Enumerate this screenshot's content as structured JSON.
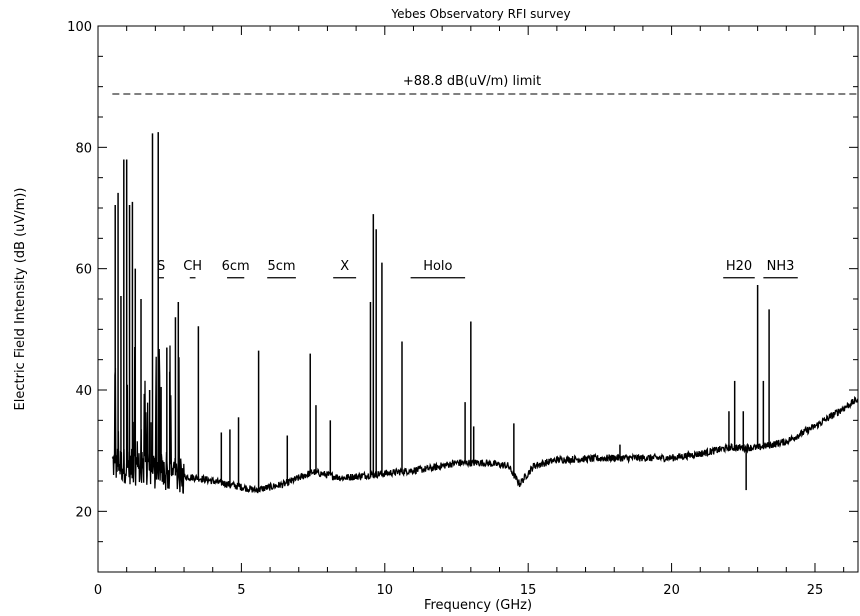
{
  "chart_data": {
    "type": "line",
    "title": "Yebes Observatory RFI survey",
    "xlabel": "Frequency (GHz)",
    "ylabel": "Electric Field Intensity (dB (uV/m))",
    "xlim": [
      0,
      26.5
    ],
    "ylim": [
      10,
      100
    ],
    "x_ticks": [
      0,
      5,
      10,
      15,
      20,
      25
    ],
    "y_ticks": [
      20,
      40,
      60,
      80,
      100
    ],
    "grid": false,
    "limit": {
      "value": 88.8,
      "label": "+88.8 dB(uV/m) limit"
    },
    "bands": [
      {
        "label": "S",
        "from": 2.1,
        "to": 2.3
      },
      {
        "label": "CH",
        "from": 3.2,
        "to": 3.4
      },
      {
        "label": "6cm",
        "from": 4.5,
        "to": 5.1
      },
      {
        "label": "5cm",
        "from": 5.9,
        "to": 6.9
      },
      {
        "label": "X",
        "from": 8.2,
        "to": 9.0
      },
      {
        "label": "Holo",
        "from": 10.9,
        "to": 12.8
      },
      {
        "label": "H20",
        "from": 21.8,
        "to": 22.9
      },
      {
        "label": "NH3",
        "from": 23.2,
        "to": 24.4
      }
    ],
    "series": [
      {
        "baseline": [
          [
            0.5,
            28
          ],
          [
            1.5,
            27
          ],
          [
            2.5,
            26
          ],
          [
            3.5,
            25.5
          ],
          [
            4.5,
            24.5
          ],
          [
            5.5,
            23.5
          ],
          [
            6.5,
            24.5
          ],
          [
            7.5,
            26.5
          ],
          [
            8.5,
            25.5
          ],
          [
            9.5,
            26
          ],
          [
            10.5,
            26.5
          ],
          [
            11.5,
            27
          ],
          [
            12.5,
            28
          ],
          [
            13.5,
            28
          ],
          [
            14.3,
            27.5
          ],
          [
            14.7,
            24.5
          ],
          [
            15.2,
            27.5
          ],
          [
            16,
            28.5
          ],
          [
            18,
            28.8
          ],
          [
            20,
            28.8
          ],
          [
            21,
            29.5
          ],
          [
            22,
            30.5
          ],
          [
            23,
            30.5
          ],
          [
            24,
            31.5
          ],
          [
            25,
            34
          ],
          [
            26,
            37
          ],
          [
            26.5,
            38.5
          ]
        ],
        "peaks": [
          [
            0.6,
            70.5
          ],
          [
            0.7,
            72.5
          ],
          [
            0.8,
            55.5
          ],
          [
            0.9,
            78
          ],
          [
            1.0,
            78
          ],
          [
            1.1,
            70.5
          ],
          [
            1.2,
            71
          ],
          [
            1.3,
            60
          ],
          [
            1.5,
            55
          ],
          [
            1.8,
            40
          ],
          [
            1.9,
            82.3
          ],
          [
            2.1,
            82.5
          ],
          [
            2.2,
            40.5
          ],
          [
            2.4,
            47
          ],
          [
            2.5,
            43
          ],
          [
            2.7,
            52
          ],
          [
            2.8,
            54.5
          ],
          [
            3.5,
            50.5
          ],
          [
            4.3,
            33
          ],
          [
            4.6,
            33.5
          ],
          [
            4.9,
            35.5
          ],
          [
            5.6,
            46.5
          ],
          [
            6.6,
            32.5
          ],
          [
            7.4,
            46
          ],
          [
            7.6,
            37.5
          ],
          [
            8.1,
            35
          ],
          [
            9.5,
            54.5
          ],
          [
            9.6,
            69
          ],
          [
            9.7,
            66.5
          ],
          [
            9.9,
            61
          ],
          [
            10.6,
            48
          ],
          [
            12.8,
            38
          ],
          [
            13.0,
            51.3
          ],
          [
            13.1,
            34
          ],
          [
            14.5,
            34.5
          ],
          [
            18.2,
            31
          ],
          [
            22.0,
            36.5
          ],
          [
            22.2,
            41.5
          ],
          [
            22.5,
            36.5
          ],
          [
            23.0,
            57.3
          ],
          [
            23.2,
            41.5
          ],
          [
            23.4,
            53.3
          ]
        ],
        "dips": [
          [
            22.6,
            23.5
          ]
        ]
      }
    ]
  }
}
